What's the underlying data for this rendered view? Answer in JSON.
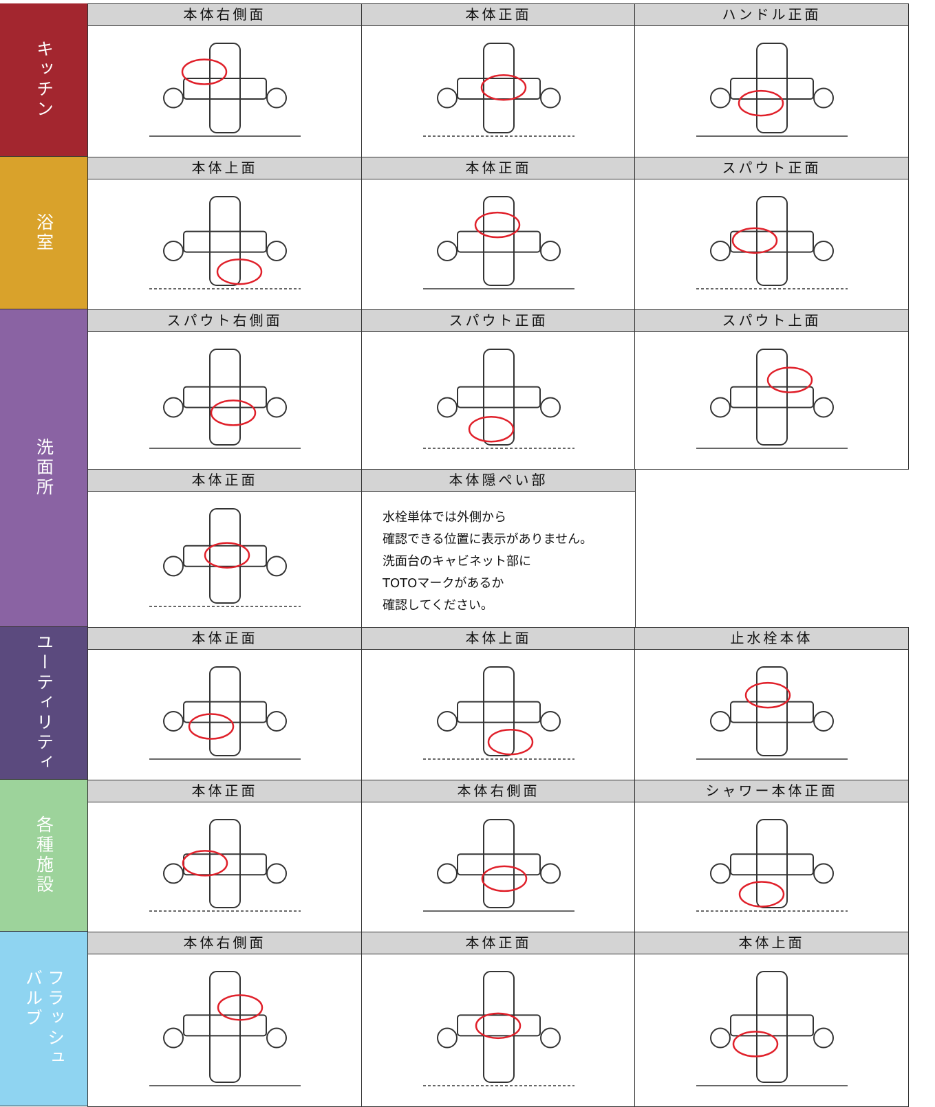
{
  "sections": [
    {
      "label": [
        "キッチン"
      ],
      "rows": [
        {
          "cells": [
            {
              "heading": "本体右側面"
            },
            {
              "heading": "本体正面"
            },
            {
              "heading": "ハンドル正面"
            }
          ]
        }
      ]
    },
    {
      "label": [
        "浴室"
      ],
      "rows": [
        {
          "cells": [
            {
              "heading": "本体上面"
            },
            {
              "heading": "本体正面"
            },
            {
              "heading": "スパウト正面"
            }
          ]
        }
      ]
    },
    {
      "label": [
        "洗面所"
      ],
      "rows": [
        {
          "cells": [
            {
              "heading": "スパウト右側面"
            },
            {
              "heading": "スパウト正面"
            },
            {
              "heading": "スパウト上面"
            }
          ]
        },
        {
          "cells": [
            {
              "heading": "本体正面"
            },
            {
              "heading": "本体隠ぺい部",
              "text": [
                "水栓単体では外側から",
                "確認できる位置に表示がありません。",
                "洗面台のキャビネット部に",
                "TOTOマークがあるか",
                "確認してください。"
              ]
            }
          ]
        }
      ]
    },
    {
      "label": [
        "ユーティリティ"
      ],
      "rows": [
        {
          "cells": [
            {
              "heading": "本体正面"
            },
            {
              "heading": "本体上面"
            },
            {
              "heading": "止水栓本体"
            }
          ]
        }
      ]
    },
    {
      "label": [
        "各種施設"
      ],
      "rows": [
        {
          "cells": [
            {
              "heading": "本体正面"
            },
            {
              "heading": "本体右側面"
            },
            {
              "heading": "シャワー本体正面"
            }
          ]
        }
      ]
    },
    {
      "label": [
        "フラッシュ",
        "バルブ"
      ],
      "rows": [
        {
          "cells": [
            {
              "heading": "本体右側面"
            },
            {
              "heading": "本体正面"
            },
            {
              "heading": "本体上面"
            }
          ]
        }
      ]
    }
  ]
}
